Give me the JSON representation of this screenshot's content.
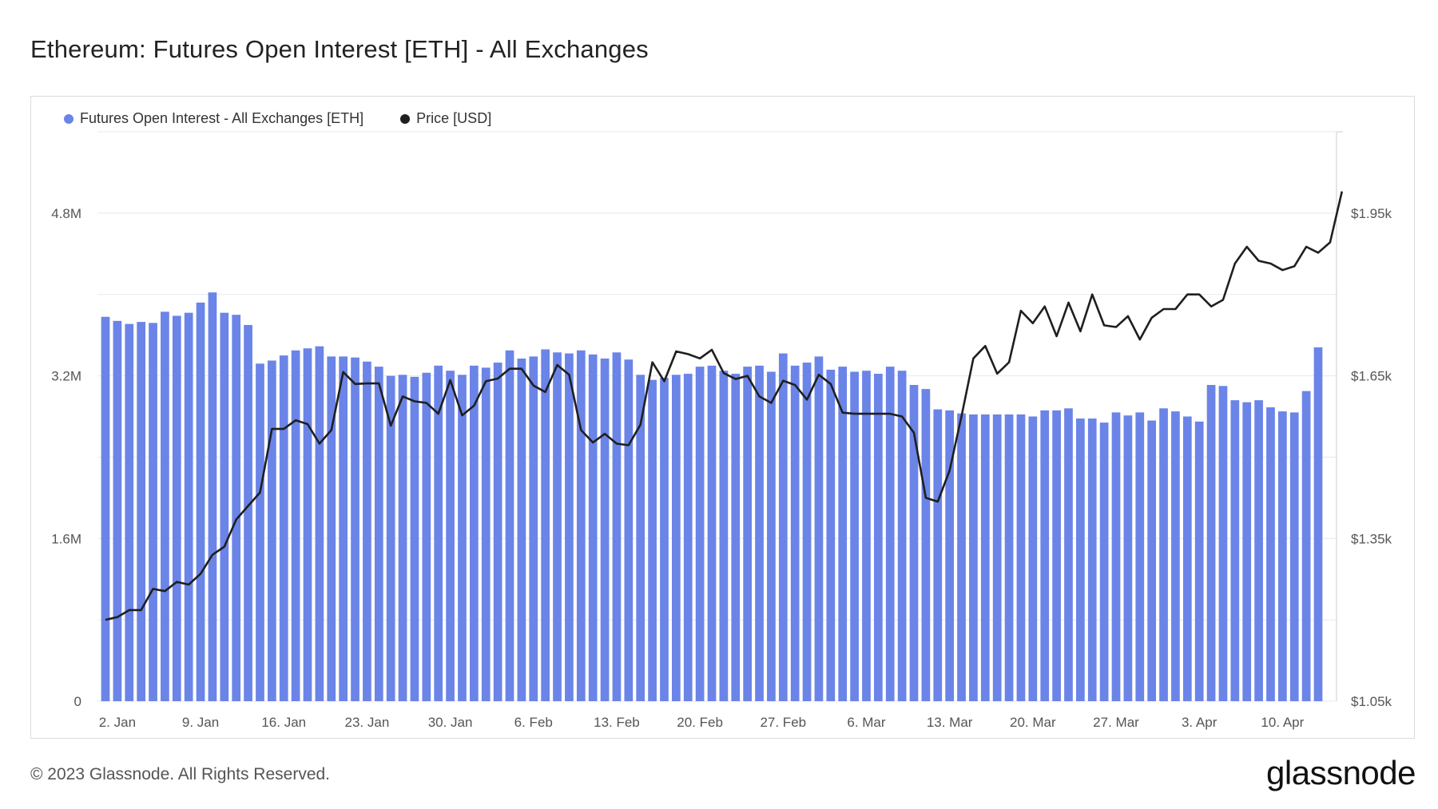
{
  "title": "Ethereum: Futures Open Interest [ETH] - All Exchanges",
  "footer": "© 2023 Glassnode. All Rights Reserved.",
  "brand": "glassnode",
  "chart_data": {
    "type": "bar+line",
    "title": "Ethereum: Futures Open Interest [ETH] - All Exchanges",
    "legend_position": "top-left",
    "grid": true,
    "x_tick_labels": [
      "2. Jan",
      "9. Jan",
      "16. Jan",
      "23. Jan",
      "30. Jan",
      "6. Feb",
      "13. Feb",
      "20. Feb",
      "27. Feb",
      "6. Mar",
      "13. Mar",
      "20. Mar",
      "27. Mar",
      "3. Apr",
      "10. Apr"
    ],
    "y_left": {
      "ticks": [
        0,
        1600000,
        3200000,
        4800000
      ],
      "tick_labels": [
        "0",
        "1.6M",
        "3.2M",
        "4.8M"
      ],
      "range": [
        0,
        5600000
      ]
    },
    "y_right": {
      "ticks": [
        1050,
        1350,
        1650,
        1950
      ],
      "tick_labels": [
        "$1.05k",
        "$1.35k",
        "$1.65k",
        "$1.95k"
      ],
      "range": [
        1050,
        2100
      ]
    },
    "series": [
      {
        "name": "Futures Open Interest - All Exchanges [ETH]",
        "kind": "bar",
        "axis": "left",
        "color": "#6b84e8",
        "values": [
          3780000,
          3740000,
          3710000,
          3730000,
          3720000,
          3830000,
          3790000,
          3820000,
          3920000,
          4020000,
          3820000,
          3800000,
          3700000,
          3320000,
          3350000,
          3400000,
          3450000,
          3470000,
          3490000,
          3390000,
          3390000,
          3380000,
          3340000,
          3290000,
          3200000,
          3210000,
          3190000,
          3230000,
          3300000,
          3250000,
          3210000,
          3300000,
          3280000,
          3330000,
          3450000,
          3370000,
          3390000,
          3460000,
          3430000,
          3420000,
          3450000,
          3410000,
          3370000,
          3430000,
          3360000,
          3210000,
          3160000,
          3180000,
          3210000,
          3220000,
          3290000,
          3300000,
          3250000,
          3220000,
          3290000,
          3300000,
          3240000,
          3420000,
          3300000,
          3330000,
          3390000,
          3260000,
          3290000,
          3240000,
          3250000,
          3220000,
          3290000,
          3250000,
          3110000,
          3070000,
          2870000,
          2860000,
          2830000,
          2820000,
          2820000,
          2820000,
          2820000,
          2820000,
          2800000,
          2860000,
          2860000,
          2880000,
          2780000,
          2780000,
          2740000,
          2840000,
          2810000,
          2840000,
          2760000,
          2880000,
          2850000,
          2800000,
          2750000,
          3110000,
          3100000,
          2960000,
          2940000,
          2960000,
          2890000,
          2850000,
          2840000,
          3050000,
          3480000
        ]
      },
      {
        "name": "Price [USD]",
        "kind": "line",
        "axis": "right",
        "color": "#1f1f1f",
        "values": [
          1200,
          1205,
          1218,
          1218,
          1257,
          1253,
          1270,
          1265,
          1285,
          1320,
          1335,
          1385,
          1410,
          1435,
          1552,
          1552,
          1568,
          1561,
          1525,
          1550,
          1657,
          1635,
          1636,
          1636,
          1558,
          1612,
          1603,
          1600,
          1580,
          1642,
          1577,
          1595,
          1640,
          1645,
          1663,
          1663,
          1632,
          1620,
          1670,
          1652,
          1550,
          1527,
          1543,
          1525,
          1522,
          1560,
          1675,
          1640,
          1695,
          1690,
          1682,
          1698,
          1655,
          1644,
          1650,
          1612,
          1600,
          1641,
          1633,
          1606,
          1652,
          1635,
          1582,
          1580,
          1580,
          1580,
          1580,
          1575,
          1545,
          1425,
          1418,
          1475,
          1575,
          1682,
          1705,
          1654,
          1675,
          1770,
          1747,
          1778,
          1723,
          1785,
          1732,
          1800,
          1743,
          1740,
          1760,
          1717,
          1757,
          1773,
          1773,
          1800,
          1800,
          1778,
          1790,
          1857,
          1888,
          1862,
          1857,
          1845,
          1852,
          1888,
          1877,
          1896,
          1990
        ]
      }
    ]
  }
}
